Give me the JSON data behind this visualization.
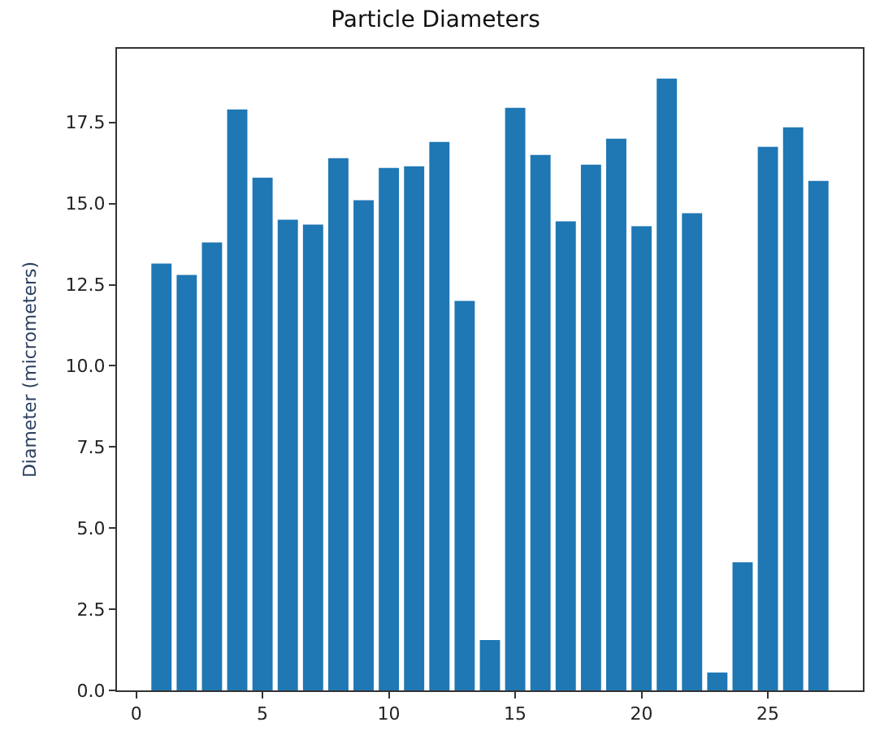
{
  "chart_data": {
    "type": "bar",
    "title": "Particle Diameters",
    "ylabel": "Diameter (micrometers)",
    "x": [
      1,
      2,
      3,
      4,
      5,
      6,
      7,
      8,
      9,
      10,
      11,
      12,
      13,
      14,
      15,
      16,
      17,
      18,
      19,
      20,
      21,
      22,
      23,
      24,
      25,
      26,
      27
    ],
    "values": [
      13.15,
      12.8,
      13.8,
      17.9,
      15.8,
      14.5,
      14.35,
      16.4,
      15.1,
      16.1,
      16.15,
      16.9,
      12.0,
      1.55,
      17.95,
      16.5,
      14.45,
      16.2,
      17.0,
      14.3,
      18.85,
      14.7,
      0.55,
      3.95,
      16.75,
      17.35,
      15.7
    ],
    "color": "#1f77b4",
    "xlim": [
      -0.76,
      28.76
    ],
    "xticks": [
      0,
      5,
      10,
      15,
      20,
      25
    ],
    "ylim": [
      0,
      19.77
    ],
    "yticks": [
      {
        "value": 0,
        "label": "0.0"
      },
      {
        "value": 2.5,
        "label": "2.5"
      },
      {
        "value": 5,
        "label": "5.0"
      },
      {
        "value": 7.5,
        "label": "7.5"
      },
      {
        "value": 10,
        "label": "10.0"
      },
      {
        "value": 12.5,
        "label": "12.5"
      },
      {
        "value": 15,
        "label": "15.0"
      },
      {
        "value": 17.5,
        "label": "17.5"
      }
    ],
    "tick_labels": true
  }
}
